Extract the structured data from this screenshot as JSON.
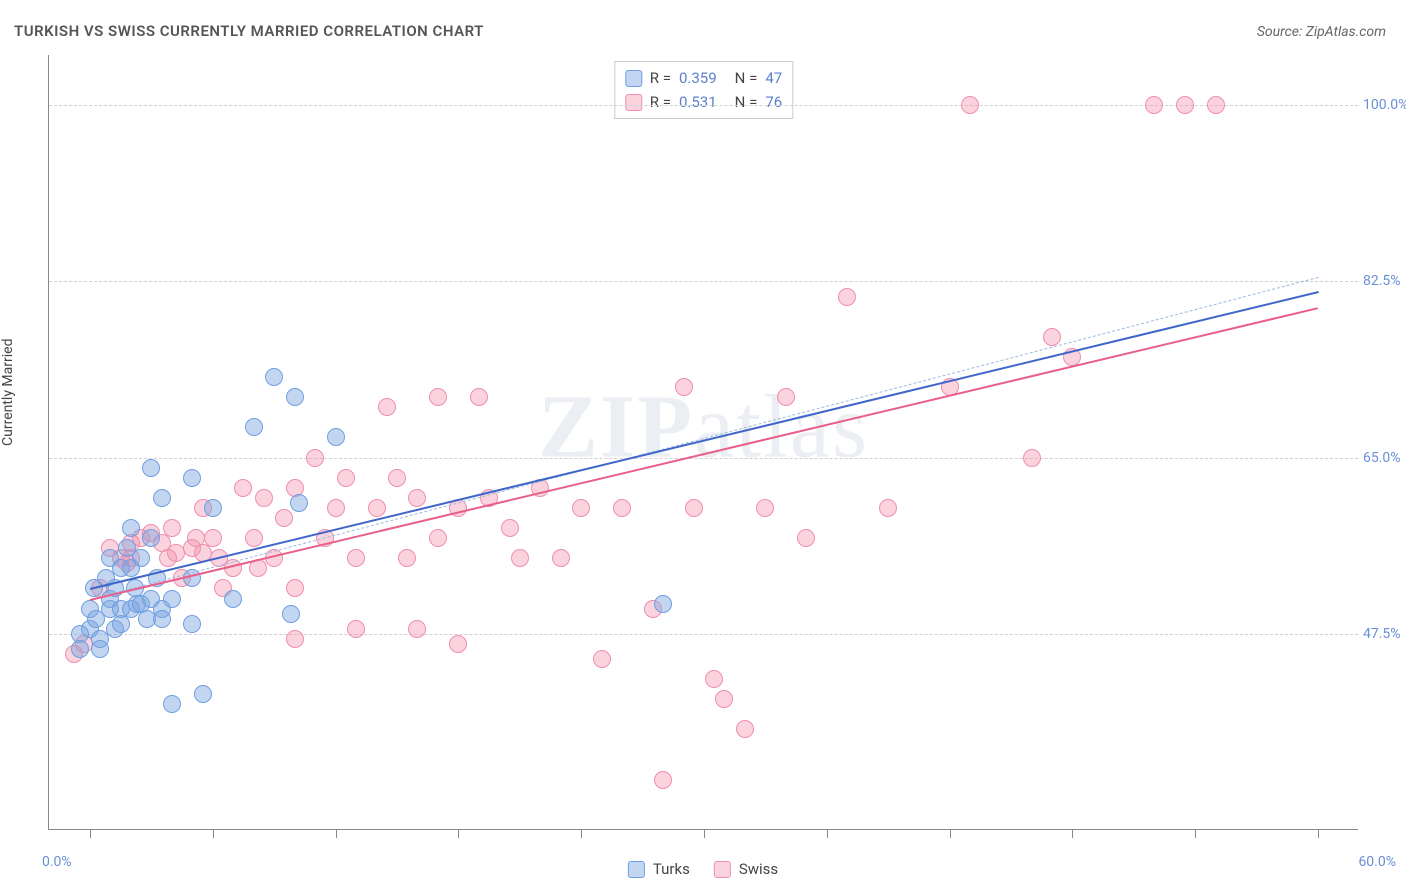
{
  "chart": {
    "type": "scatter",
    "title": "TURKISH VS SWISS CURRENTLY MARRIED CORRELATION CHART",
    "source_label": "Source: ZipAtlas.com",
    "ylabel": "Currently Married",
    "watermark": {
      "bold": "ZIP",
      "rest": "atlas"
    },
    "background_color": "#ffffff",
    "grid_color": "#d0d0d0",
    "axis_color": "#888888",
    "tick_label_color": "#6b8fd6",
    "xlim": [
      -2,
      62
    ],
    "ylim": [
      28,
      105
    ],
    "x_start_label": "0.0%",
    "x_end_label": "60.0%",
    "y_gridlines": [
      47.5,
      65.0,
      82.5,
      100.0
    ],
    "y_tick_labels": [
      "47.5%",
      "65.0%",
      "82.5%",
      "100.0%"
    ],
    "x_ticks": [
      0,
      6,
      12,
      18,
      24,
      30,
      36,
      42,
      48,
      54,
      60
    ],
    "marker_radius": 9,
    "marker_border_width": 1.5,
    "series": {
      "turks": {
        "label": "Turks",
        "fill": "rgba(123,165,224,0.45)",
        "stroke": "#6f9fe0",
        "R": "0.359",
        "N": "47",
        "trend": {
          "x1": 0,
          "y1": 52.0,
          "x2": 60,
          "y2": 81.5,
          "color": "#3f66c8",
          "width": 2.2,
          "dash": false
        },
        "guide": {
          "x1": 0,
          "y1": 51.0,
          "x2": 60,
          "y2": 83.0,
          "color": "#9db9e0",
          "width": 1.3,
          "dash": true
        },
        "points": [
          [
            0,
            48
          ],
          [
            0,
            50
          ],
          [
            0.3,
            49
          ],
          [
            0.5,
            47
          ],
          [
            0.5,
            46
          ],
          [
            0.2,
            52
          ],
          [
            -0.5,
            47.5
          ],
          [
            -0.5,
            46
          ],
          [
            0.8,
            53
          ],
          [
            1,
            55
          ],
          [
            1,
            51
          ],
          [
            1,
            50
          ],
          [
            1.2,
            48
          ],
          [
            1.2,
            52
          ],
          [
            1.5,
            54
          ],
          [
            1.5,
            50
          ],
          [
            1.5,
            48.5
          ],
          [
            1.8,
            56
          ],
          [
            2,
            54
          ],
          [
            2,
            58
          ],
          [
            2,
            50
          ],
          [
            2.2,
            52
          ],
          [
            2.3,
            50.5
          ],
          [
            2.5,
            55
          ],
          [
            2.5,
            50.5
          ],
          [
            2.8,
            49
          ],
          [
            3,
            64
          ],
          [
            3,
            57
          ],
          [
            3,
            51
          ],
          [
            3.3,
            53
          ],
          [
            3.5,
            61
          ],
          [
            3.5,
            50
          ],
          [
            3.5,
            49
          ],
          [
            4,
            51
          ],
          [
            4,
            40.5
          ],
          [
            5,
            63
          ],
          [
            5,
            53
          ],
          [
            5,
            48.5
          ],
          [
            5.5,
            41.5
          ],
          [
            6,
            60
          ],
          [
            7,
            51
          ],
          [
            8,
            68
          ],
          [
            9,
            73
          ],
          [
            9.8,
            49.5
          ],
          [
            10,
            71
          ],
          [
            10.2,
            60.5
          ],
          [
            12,
            67
          ],
          [
            28,
            50.5
          ]
        ]
      },
      "swiss": {
        "label": "Swiss",
        "fill": "rgba(242,140,168,0.38)",
        "stroke": "#ef8fae",
        "R": "0.531",
        "N": "76",
        "trend": {
          "x1": 0,
          "y1": 51.0,
          "x2": 60,
          "y2": 80.0,
          "color": "#e85f8a",
          "width": 2.2,
          "dash": false
        },
        "points": [
          [
            -0.8,
            45.5
          ],
          [
            -0.3,
            46.5
          ],
          [
            0.5,
            52
          ],
          [
            1,
            56
          ],
          [
            1.5,
            55
          ],
          [
            1.8,
            54.5
          ],
          [
            2,
            56.5
          ],
          [
            2,
            55
          ],
          [
            2.5,
            57
          ],
          [
            3,
            57.5
          ],
          [
            3.5,
            56.5
          ],
          [
            3.8,
            55
          ],
          [
            4,
            58
          ],
          [
            4.2,
            55.5
          ],
          [
            4.5,
            53
          ],
          [
            5,
            56
          ],
          [
            5.2,
            57
          ],
          [
            5.5,
            60
          ],
          [
            5.5,
            55.5
          ],
          [
            6,
            57
          ],
          [
            6.3,
            55
          ],
          [
            6.5,
            52
          ],
          [
            7,
            54
          ],
          [
            7.5,
            62
          ],
          [
            8,
            57
          ],
          [
            8.2,
            54
          ],
          [
            8.5,
            61
          ],
          [
            9,
            55
          ],
          [
            9.5,
            59
          ],
          [
            10,
            62
          ],
          [
            10,
            52
          ],
          [
            10,
            47
          ],
          [
            11,
            65
          ],
          [
            11.5,
            57
          ],
          [
            12,
            60
          ],
          [
            12.5,
            63
          ],
          [
            13,
            55
          ],
          [
            13,
            48
          ],
          [
            14,
            60
          ],
          [
            14.5,
            70
          ],
          [
            15,
            63
          ],
          [
            15.5,
            55
          ],
          [
            16,
            61
          ],
          [
            16,
            48
          ],
          [
            17,
            71
          ],
          [
            17,
            57
          ],
          [
            18,
            60
          ],
          [
            18,
            46.5
          ],
          [
            19,
            71
          ],
          [
            19.5,
            61
          ],
          [
            20.5,
            58
          ],
          [
            21,
            55
          ],
          [
            22,
            62
          ],
          [
            23,
            55
          ],
          [
            24,
            60
          ],
          [
            25,
            45
          ],
          [
            26,
            60
          ],
          [
            27.5,
            50
          ],
          [
            28,
            33
          ],
          [
            29,
            72
          ],
          [
            29.5,
            60
          ],
          [
            30.5,
            43
          ],
          [
            31,
            41
          ],
          [
            32,
            38
          ],
          [
            33,
            60
          ],
          [
            34,
            71
          ],
          [
            35,
            57
          ],
          [
            37,
            81
          ],
          [
            39,
            60
          ],
          [
            42,
            72
          ],
          [
            43,
            100
          ],
          [
            46,
            65
          ],
          [
            47,
            77
          ],
          [
            48,
            75
          ],
          [
            52,
            100
          ],
          [
            53.5,
            100
          ],
          [
            55,
            100
          ]
        ]
      }
    }
  }
}
